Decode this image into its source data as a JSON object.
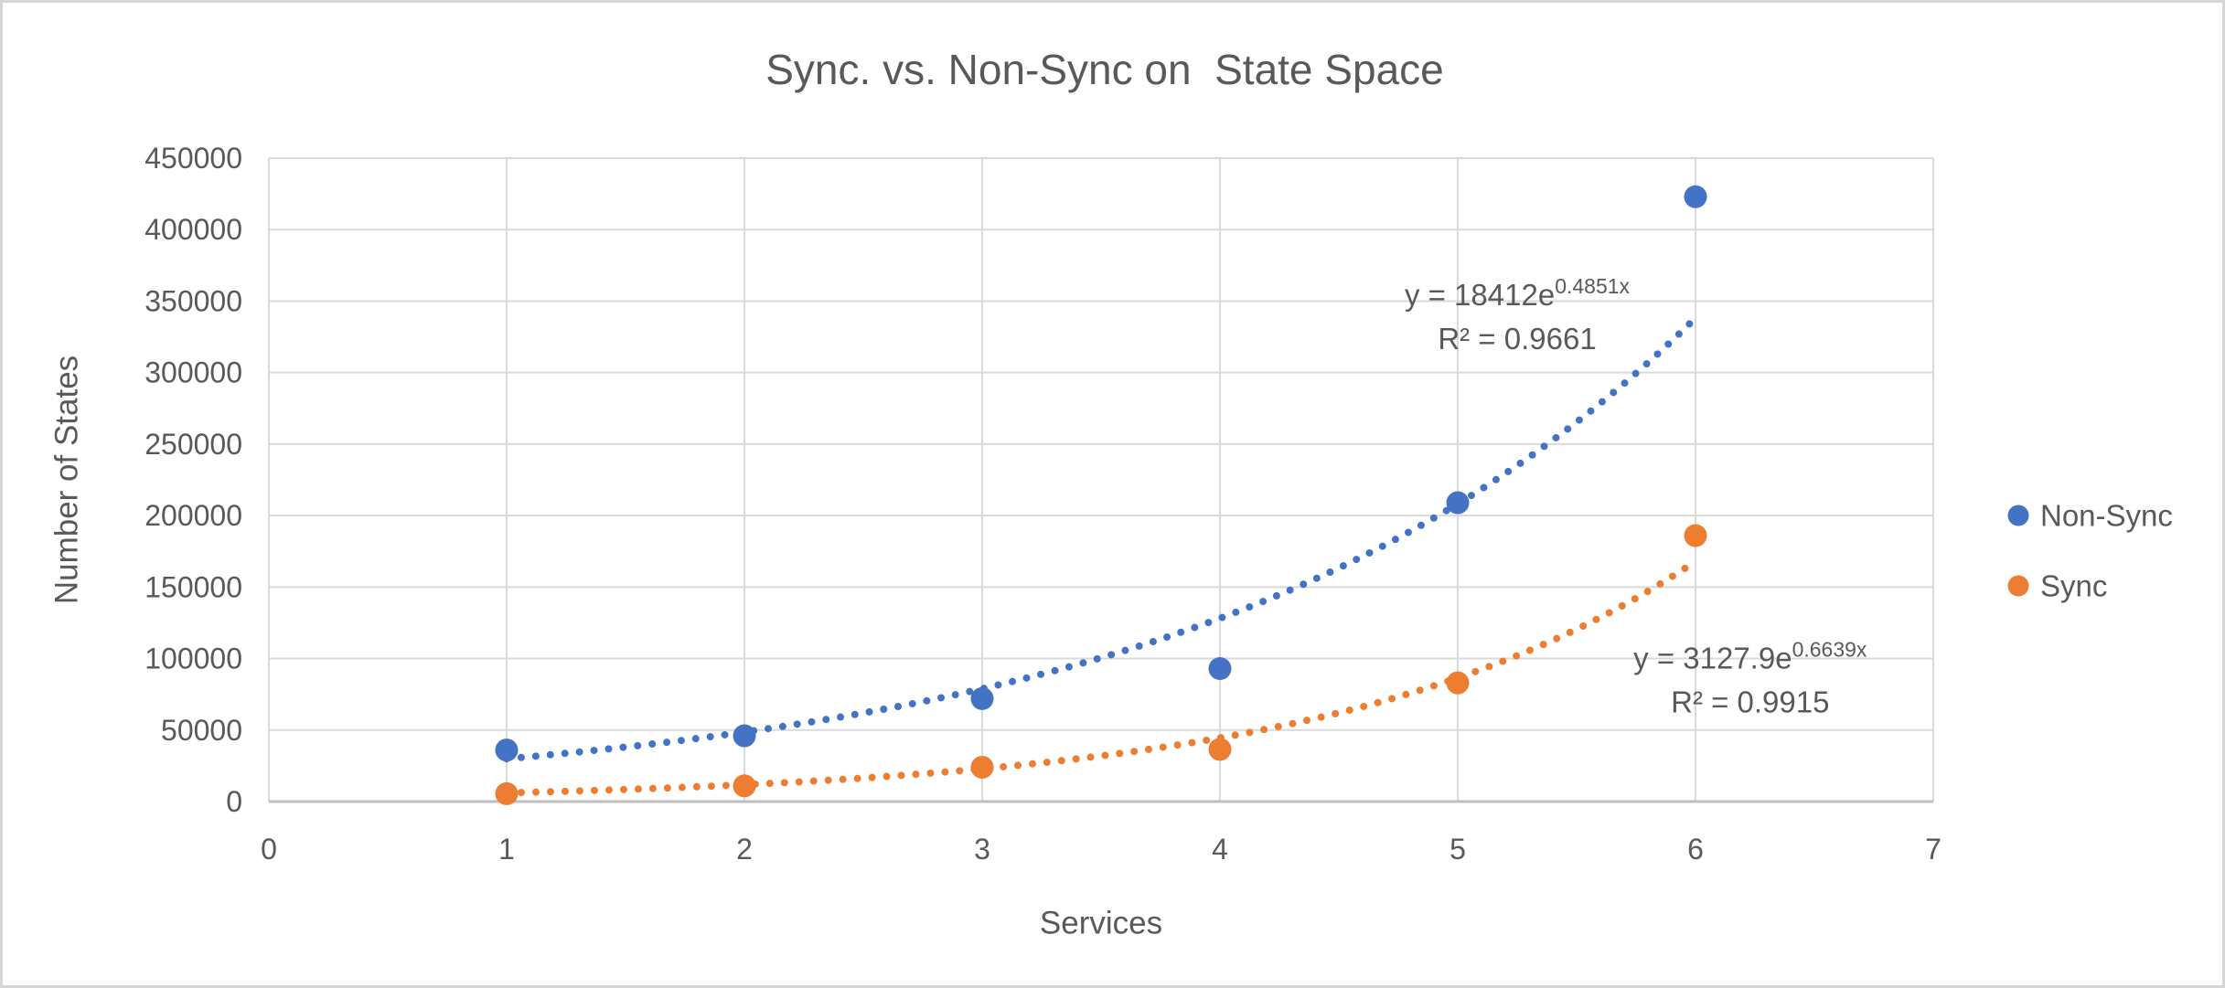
{
  "colors": {
    "text": "#595959",
    "gridline": "#d9d9d9",
    "axis_line": "#bfbfbf",
    "frame_border": "#d6d6d6",
    "background": "#ffffff"
  },
  "chart_data": {
    "type": "scatter",
    "title": "Sync. vs. Non-Sync on  State Space",
    "xlabel": "Services",
    "ylabel": "Number of States",
    "xlim": [
      0,
      7
    ],
    "ylim": [
      0,
      450000
    ],
    "x_ticks": [
      0,
      1,
      2,
      3,
      4,
      5,
      6,
      7
    ],
    "y_ticks": [
      0,
      50000,
      100000,
      150000,
      200000,
      250000,
      300000,
      350000,
      400000,
      450000
    ],
    "grid": true,
    "legend_position": "right",
    "categories_x": [
      1,
      2,
      3,
      4,
      5,
      6
    ],
    "series": [
      {
        "name": "Non-Sync",
        "color": "#4472c4",
        "x": [
          1,
          2,
          3,
          4,
          5,
          6
        ],
        "values": [
          36000,
          46000,
          72000,
          93000,
          209000,
          423000
        ],
        "trendline": {
          "type": "exponential",
          "a": 18412,
          "b": 0.4851,
          "x_range": [
            1,
            6
          ],
          "eq_base": "y = 18412e",
          "eq_sup": "0.4851x",
          "r2": "R² = 0.9661",
          "label_pos": {
            "x": 5.25,
            "y": 354000
          }
        }
      },
      {
        "name": "Sync",
        "color": "#ed7d31",
        "x": [
          1,
          2,
          3,
          4,
          5,
          6
        ],
        "values": [
          5500,
          11000,
          24000,
          36500,
          83000,
          186000
        ],
        "trendline": {
          "type": "exponential",
          "a": 3127.9,
          "b": 0.6639,
          "x_range": [
            1,
            6
          ],
          "eq_base": "y = 3127.9e",
          "eq_sup": "0.6639x",
          "r2": "R² = 0.9915",
          "label_pos": {
            "x": 6.23,
            "y": 100000
          }
        }
      }
    ]
  },
  "legend": {
    "items": [
      {
        "label": "Non-Sync",
        "color": "#4472c4"
      },
      {
        "label": "Sync",
        "color": "#ed7d31"
      }
    ]
  }
}
